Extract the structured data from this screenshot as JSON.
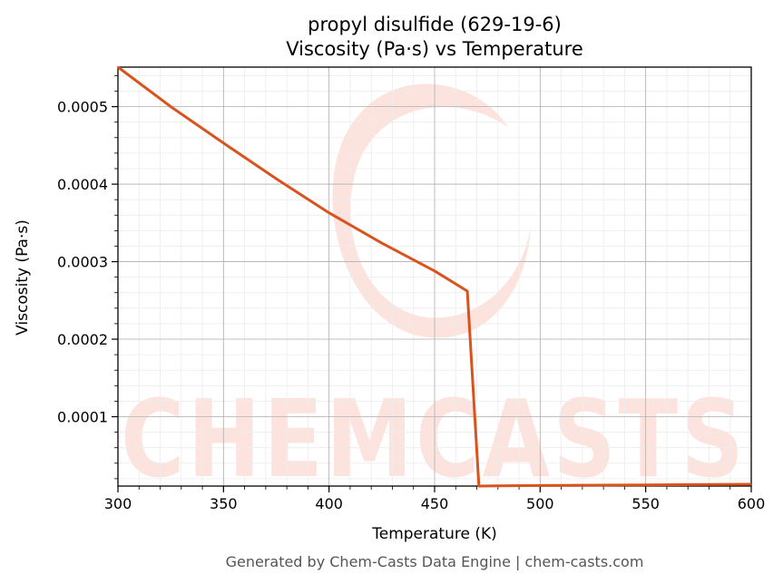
{
  "chart_data": {
    "type": "line",
    "title": "propyl disulfide (629-19-6)",
    "subtitle": "Viscosity (Pa·s) vs Temperature",
    "xlabel": "Temperature (K)",
    "ylabel": "Viscosity (Pa·s)",
    "xlim": [
      300,
      600
    ],
    "ylim": [
      1.05e-05,
      0.000551
    ],
    "x_ticks": [
      300,
      350,
      400,
      450,
      500,
      550,
      600
    ],
    "x_tick_labels": [
      "300",
      "350",
      "400",
      "450",
      "500",
      "550",
      "600"
    ],
    "y_ticks": [
      0.0001,
      0.0002,
      0.0003,
      0.0004,
      0.0005
    ],
    "y_tick_labels": [
      "0.0001",
      "0.0002",
      "0.0003",
      "0.0004",
      "0.0005"
    ],
    "grid": true,
    "minor_grid": true,
    "series": [
      {
        "color": "#d9531e",
        "x": [
          300,
          325,
          350,
          375,
          400,
          425,
          450,
          465.5,
          471,
          480,
          500,
          550,
          600
        ],
        "y": [
          0.000551,
          0.0005,
          0.000453,
          0.000407,
          0.000363,
          0.000324,
          0.000288,
          0.000262,
          1.05e-05,
          1.08e-05,
          1.12e-05,
          1.2e-05,
          1.28e-05
        ]
      }
    ]
  },
  "watermark": {
    "text": "CHEMCASTS",
    "color": "#fde3dd"
  },
  "footer": "Generated by Chem-Casts Data Engine | chem-casts.com"
}
